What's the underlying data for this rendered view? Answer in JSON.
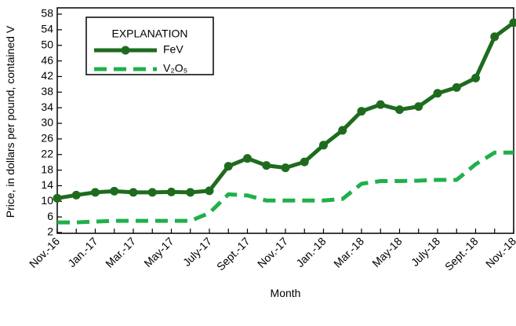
{
  "chart_data": {
    "type": "line",
    "x_label": "Month",
    "y_label": "Price, in dollars per pound, contained V",
    "legend_title": "EXPLANATION",
    "legend": "upper-left",
    "categories": [
      "Nov.-16",
      null,
      "Jan.-17",
      null,
      "Mar.-17",
      null,
      "May-17",
      null,
      "July-17",
      null,
      "Sept.-17",
      null,
      "Nov.-17",
      null,
      "Jan.-18",
      null,
      "Mar.-18",
      null,
      "May-18",
      null,
      "July-18",
      null,
      "Sept.-18",
      null,
      "Nov.-18"
    ],
    "series": [
      {
        "name": "FeV",
        "color": "#1e6b1e",
        "dashed": false,
        "markers": true,
        "values": [
          10.8,
          11.6,
          12.3,
          12.6,
          12.3,
          12.3,
          12.4,
          12.3,
          12.7,
          19.0,
          21.0,
          19.2,
          18.6,
          20.1,
          24.4,
          28.2,
          33.1,
          34.8,
          33.5,
          34.3,
          37.7,
          39.2,
          41.6,
          52.2,
          55.8
        ]
      },
      {
        "name": "V₂O₅",
        "color": "#1fb04a",
        "dashed": true,
        "markers": false,
        "values": [
          4.6,
          4.6,
          4.8,
          5.0,
          5.0,
          5.0,
          5.0,
          5.0,
          7.0,
          11.8,
          11.5,
          10.2,
          10.2,
          10.2,
          10.2,
          10.6,
          14.5,
          15.2,
          15.2,
          15.3,
          15.5,
          15.5,
          19.5,
          22.5,
          22.5
        ]
      }
    ],
    "ylim": [
      2,
      58
    ],
    "yticks": [
      2,
      6,
      10,
      14,
      18,
      22,
      26,
      30,
      34,
      38,
      42,
      46,
      50,
      54,
      58
    ]
  }
}
